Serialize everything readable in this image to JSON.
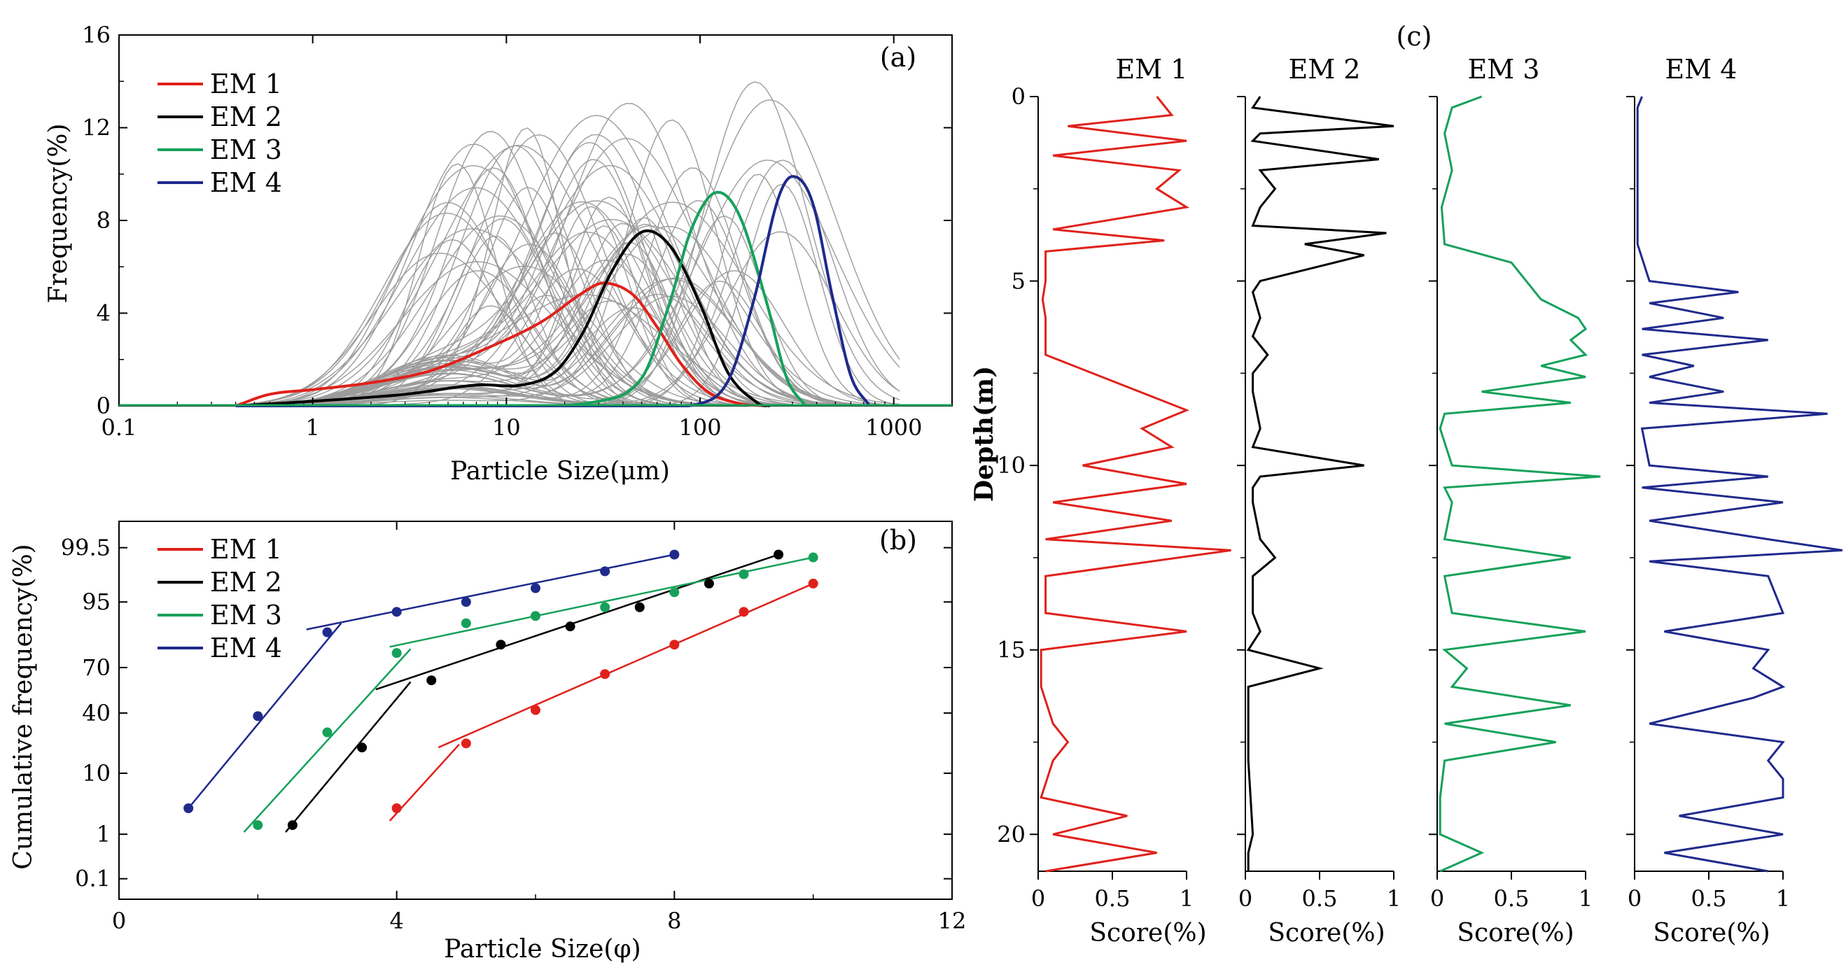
{
  "colors": {
    "em1": "#e0211b",
    "em2": "#000000",
    "em3": "#16a15a",
    "em4": "#1f2a8c",
    "gray": "#9c9c9c"
  },
  "chart_data": [
    {
      "panel": "(a)",
      "type": "line",
      "title": "",
      "xlabel": "Particle Size(μm)",
      "ylabel": "Frequency(%)",
      "xscale": "log",
      "xlim": [
        0.1,
        2000
      ],
      "ylim": [
        0,
        16
      ],
      "xticks": [
        0.1,
        1,
        10,
        100,
        1000
      ],
      "xtick_labels": [
        "0.1",
        "1",
        "10",
        "100",
        "1000"
      ],
      "yticks": [
        0,
        4,
        8,
        12,
        16
      ],
      "ytick_labels": [
        "0",
        "4",
        "8",
        "12",
        "16"
      ],
      "legend": [
        "EM 1",
        "EM 2",
        "EM 3",
        "EM 4"
      ],
      "legend_position": "top-left",
      "background": "many gray individual sample distribution curves",
      "series": [
        {
          "name": "EM 1",
          "x": [
            0.4,
            0.6,
            1,
            2,
            4,
            8,
            15,
            25,
            32,
            45,
            60,
            80,
            110,
            160,
            220
          ],
          "y": [
            0,
            0.5,
            0.7,
            1,
            1.5,
            2.5,
            3.6,
            4.9,
            5.3,
            4.8,
            3.4,
            1.8,
            0.6,
            0.1,
            0
          ]
        },
        {
          "name": "EM 2",
          "x": [
            0.4,
            1,
            3,
            7,
            12,
            18,
            25,
            35,
            50,
            70,
            100,
            140,
            200,
            230
          ],
          "y": [
            0,
            0.2,
            0.5,
            0.9,
            0.9,
            1.5,
            3.2,
            5.8,
            7.5,
            6.9,
            4.4,
            1.4,
            0.1,
            0
          ]
        },
        {
          "name": "EM 3",
          "x": [
            0.4,
            10,
            30,
            50,
            70,
            90,
            120,
            160,
            220,
            280,
            350
          ],
          "y": [
            0,
            0,
            0.2,
            1.2,
            4.5,
            7.6,
            9.2,
            8.2,
            4.5,
            1.2,
            0
          ]
        },
        {
          "name": "EM 4",
          "x": [
            0.4,
            50,
            100,
            140,
            190,
            250,
            300,
            380,
            480,
            600,
            750
          ],
          "y": [
            0,
            0,
            0.1,
            1.1,
            4.6,
            8.8,
            9.9,
            8.8,
            4.8,
            1.3,
            0
          ]
        }
      ]
    },
    {
      "panel": "(b)",
      "type": "scatter",
      "title": "",
      "xlabel": "Particle Size(φ)",
      "ylabel": "Cumulative frequency(%)",
      "xlim": [
        0,
        12
      ],
      "xticks": [
        0,
        4,
        8,
        12
      ],
      "xtick_labels": [
        "0",
        "4",
        "8",
        "12"
      ],
      "yscale": "probability",
      "yticks": [
        0.1,
        1,
        10,
        40,
        70,
        95,
        99.5
      ],
      "ytick_labels": [
        "0.1",
        "1",
        "10",
        "40",
        "70",
        "95",
        "99.5"
      ],
      "legend": [
        "EM 1",
        "EM 2",
        "EM 3",
        "EM 4"
      ],
      "legend_position": "top-left",
      "series": [
        {
          "name": "EM 1",
          "x": [
            4,
            5,
            6,
            7,
            8,
            9,
            10
          ],
          "y": [
            3,
            22,
            42,
            66,
            82,
            93,
            97.5
          ]
        },
        {
          "name": "EM 2",
          "x": [
            2.5,
            3.5,
            4.5,
            5.5,
            6.5,
            7.5,
            8.5,
            9.5
          ],
          "y": [
            1.5,
            20,
            62,
            82,
            89,
            94,
            97.5,
            99.3
          ]
        },
        {
          "name": "EM 3",
          "x": [
            2,
            3,
            4,
            5,
            6,
            7,
            8,
            9,
            10
          ],
          "y": [
            1.5,
            28,
            78,
            90,
            92,
            94,
            96.5,
            98.3,
            99.2
          ]
        },
        {
          "name": "EM 4",
          "x": [
            1,
            2,
            3,
            4,
            5,
            6,
            7,
            8
          ],
          "y": [
            3,
            38,
            87,
            93,
            95,
            97,
            98.5,
            99.3
          ]
        }
      ],
      "fit_lines": [
        {
          "name": "EM 1",
          "x": [
            3.9,
            4.9
          ],
          "y": [
            1.8,
            21.5
          ]
        },
        {
          "name": "EM 1",
          "x": [
            4.6,
            10
          ],
          "y": [
            20,
            97.5
          ]
        },
        {
          "name": "EM 2",
          "x": [
            2.4,
            4.2
          ],
          "y": [
            1.1,
            61
          ]
        },
        {
          "name": "EM 2",
          "x": [
            3.7,
            9.5
          ],
          "y": [
            56,
            99.3
          ]
        },
        {
          "name": "EM 3",
          "x": [
            1.8,
            4.2
          ],
          "y": [
            1.1,
            80
          ]
        },
        {
          "name": "EM 3",
          "x": [
            3.9,
            10
          ],
          "y": [
            81,
            99.2
          ]
        },
        {
          "name": "EM 4",
          "x": [
            1,
            3.2
          ],
          "y": [
            3,
            90
          ]
        },
        {
          "name": "EM 4",
          "x": [
            2.7,
            8
          ],
          "y": [
            88,
            99.3
          ]
        }
      ]
    },
    {
      "panel": "(c)",
      "type": "line",
      "title": "",
      "ylabel": "Depth(m)",
      "xlabel": "Score(%)",
      "ylim": [
        0,
        21
      ],
      "yticks": [
        0,
        5,
        10,
        15,
        20
      ],
      "ytick_labels": [
        "0",
        "5",
        "10",
        "15",
        "20"
      ],
      "xticks": [
        0,
        0.5,
        1
      ],
      "xtick_labels": [
        "0",
        "0.5",
        "1"
      ],
      "subplots": [
        {
          "name": "EM 1",
          "depth": [
            0,
            0.5,
            0.8,
            1.2,
            1.6,
            2,
            2.5,
            3,
            3.6,
            3.9,
            4.2,
            5,
            5.5,
            6,
            6.5,
            7,
            8.5,
            9,
            9.5,
            10,
            10.5,
            11,
            11.5,
            12,
            12.3,
            13,
            14,
            14.5,
            15,
            16,
            17,
            17.5,
            18,
            19,
            19.5,
            20,
            20.5,
            21
          ],
          "score": [
            0.8,
            0.9,
            0.2,
            1,
            0.1,
            0.95,
            0.8,
            1,
            0.1,
            0.85,
            0.05,
            0.05,
            0.03,
            0.05,
            0.05,
            0.05,
            1,
            0.7,
            0.9,
            0.3,
            1,
            0.1,
            0.9,
            0.05,
            1.3,
            0.05,
            0.05,
            1,
            0.02,
            0.02,
            0.1,
            0.2,
            0.1,
            0.02,
            0.6,
            0.1,
            0.8,
            0.05
          ]
        },
        {
          "name": "EM 2",
          "depth": [
            0,
            0.3,
            0.8,
            1,
            1.2,
            1.7,
            2,
            2.5,
            3,
            3.5,
            3.7,
            4,
            4.3,
            5,
            5.3,
            6,
            6.5,
            7,
            7.5,
            8,
            9,
            9.5,
            10,
            10.3,
            10.6,
            11,
            12,
            12.5,
            13,
            14,
            14.5,
            15,
            15.5,
            16,
            18,
            20,
            20.5,
            21
          ],
          "score": [
            0.1,
            0.05,
            1,
            0.1,
            0.05,
            0.9,
            0.1,
            0.2,
            0.1,
            0.05,
            0.95,
            0.4,
            0.8,
            0.1,
            0.05,
            0.1,
            0.05,
            0.15,
            0.05,
            0.05,
            0.1,
            0.05,
            0.8,
            0.1,
            0.05,
            0.05,
            0.1,
            0.2,
            0.05,
            0.05,
            0.1,
            0.02,
            0.5,
            0.02,
            0.02,
            0.05,
            0.02,
            0.02
          ]
        },
        {
          "name": "EM 3",
          "depth": [
            0,
            0.3,
            1,
            2,
            3,
            4,
            4.5,
            5,
            5.5,
            6,
            6.3,
            6.6,
            7,
            7.3,
            7.6,
            8,
            8.3,
            8.6,
            9,
            10,
            10.3,
            10.6,
            11,
            12,
            12.5,
            13,
            14,
            14.5,
            15,
            15.5,
            16,
            16.5,
            17,
            17.5,
            18,
            19,
            20,
            20.5,
            21
          ],
          "score": [
            0.3,
            0.1,
            0.05,
            0.1,
            0.03,
            0.05,
            0.5,
            0.6,
            0.7,
            0.95,
            1,
            0.9,
            1,
            0.7,
            1,
            0.3,
            0.9,
            0.05,
            0.02,
            0.1,
            1.1,
            0.05,
            0.1,
            0.05,
            0.9,
            0.05,
            0.1,
            1,
            0.05,
            0.2,
            0.1,
            0.9,
            0.05,
            0.8,
            0.05,
            0.02,
            0.02,
            0.3,
            0.02
          ]
        },
        {
          "name": "EM 4",
          "depth": [
            0,
            0.3,
            1,
            3,
            4,
            5,
            5.3,
            5.6,
            6,
            6.3,
            6.6,
            7,
            7.3,
            7.6,
            8,
            8.3,
            8.6,
            9,
            10,
            10.3,
            10.6,
            11,
            11.5,
            12,
            12.3,
            12.6,
            13,
            14,
            14.5,
            15,
            15.5,
            16,
            16.3,
            17,
            17.5,
            18,
            18.5,
            19,
            19.5,
            20,
            20.5,
            21
          ],
          "score": [
            0.05,
            0.02,
            0.02,
            0.02,
            0.02,
            0.1,
            0.7,
            0.1,
            0.6,
            0.05,
            0.9,
            0.05,
            0.4,
            0.1,
            0.6,
            0.1,
            1.3,
            0.05,
            0.1,
            0.9,
            0.05,
            1,
            0.1,
            0.9,
            1.4,
            0.1,
            0.9,
            1,
            0.2,
            0.9,
            0.8,
            1,
            0.8,
            0.1,
            1,
            0.9,
            1,
            1,
            0.3,
            1,
            0.2,
            0.9
          ]
        }
      ]
    }
  ]
}
